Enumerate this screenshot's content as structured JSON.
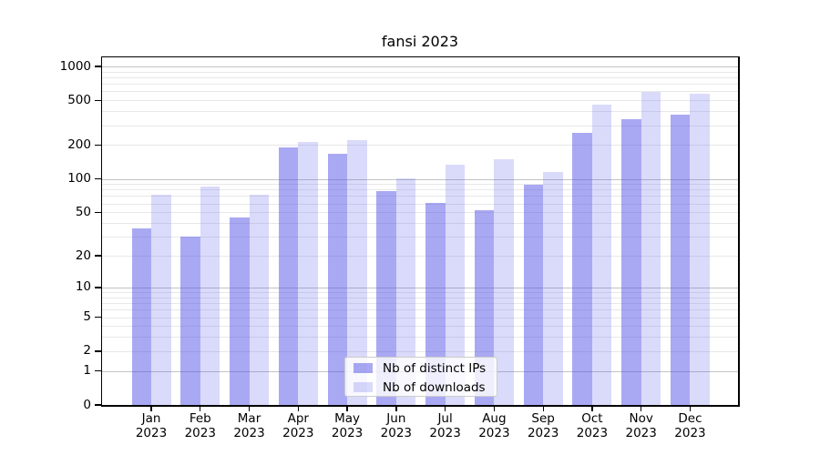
{
  "title": "fansi 2023",
  "chart_data": {
    "type": "bar",
    "title": "fansi 2023",
    "scale": "log1p (y position proportional to log10(value+1))",
    "grid": "horizontal, minor log gridlines",
    "legend_position": "lower center",
    "categories": [
      "Jan 2023",
      "Feb 2023",
      "Mar 2023",
      "Apr 2023",
      "May 2023",
      "Jun 2023",
      "Jul 2023",
      "Aug 2023",
      "Sep 2023",
      "Oct 2023",
      "Nov 2023",
      "Dec 2023"
    ],
    "series": [
      {
        "name": "Nb of distinct IPs",
        "color": "#5050e6",
        "fill_opacity": 0.49,
        "values": [
          36,
          30,
          45,
          190,
          166,
          77,
          61,
          52,
          88,
          255,
          340,
          375
        ]
      },
      {
        "name": "Nb of downloads",
        "color": "#5050e6",
        "fill_opacity": 0.21,
        "values": [
          72,
          86,
          72,
          215,
          220,
          101,
          134,
          150,
          116,
          460,
          595,
          570
        ]
      }
    ],
    "yticks": [
      0,
      1,
      2,
      5,
      10,
      20,
      50,
      100,
      200,
      500,
      1000
    ],
    "ylim": [
      0,
      1200
    ],
    "xlabel": "",
    "ylabel": ""
  },
  "colors": {
    "background": "#ffffff",
    "major_gridline": "#c3c3c3",
    "minor_gridline": "#e8e8e8",
    "axis": "#000000"
  }
}
